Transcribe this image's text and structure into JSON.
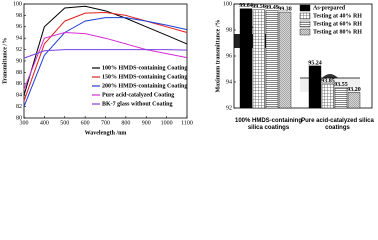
{
  "chart_data": [
    {
      "type": "line",
      "y_label": "Transmittance /%",
      "x_label": "Wavelength /nm",
      "x": [
        300,
        400,
        500,
        600,
        700,
        800,
        900,
        1000,
        1100
      ],
      "series": [
        {
          "name": "100% HMDS-containing Coating",
          "color": "#000000",
          "values": [
            84,
            96,
            99.3,
            99.6,
            98.8,
            97.5,
            96,
            94.5,
            93
          ]
        },
        {
          "name": "150% HMDS-containing Coating",
          "color": "#e0201b",
          "values": [
            83,
            93,
            97,
            98.4,
            98.5,
            98,
            97,
            96,
            95
          ]
        },
        {
          "name": "200% HMDS-containing Coating",
          "color": "#1f3fd8",
          "values": [
            82,
            91,
            95,
            97,
            97.6,
            97.6,
            97,
            96.3,
            95.5
          ]
        },
        {
          "name": "Pure acid-catalyzed Coating",
          "color": "#d62bd6",
          "values": [
            85,
            94,
            95,
            94.8,
            94,
            93,
            92,
            91.3,
            90.6
          ]
        },
        {
          "name": "BK-7 glass without Coating",
          "color": "#7a3fe0",
          "values": [
            90.5,
            91.8,
            92,
            92,
            92,
            92,
            92,
            92,
            91.9
          ]
        }
      ],
      "xlim": [
        300,
        1100
      ],
      "xticks": [
        300,
        400,
        500,
        600,
        700,
        800,
        900,
        1000,
        1100
      ],
      "ylim": [
        80,
        100
      ],
      "yticks": [
        80,
        82,
        84,
        86,
        88,
        90,
        92,
        94,
        96,
        98,
        100
      ]
    },
    {
      "type": "bar",
      "y_label": "Maximum transmittance /%",
      "categories": [
        "100% HMDS-containing silica coatings",
        "Pure acid-catalyzed silica coatings"
      ],
      "series": [
        {
          "name": "As-prepared",
          "color": "#000000",
          "pattern": "solid",
          "values": [
            99.64,
            95.24
          ],
          "value_labels": [
            "99.64",
            "95.24"
          ]
        },
        {
          "name": "Testing at 40% RH",
          "color": "#555555",
          "pattern": "grid",
          "values": [
            99.56,
            93.85
          ],
          "value_labels": [
            "99.56",
            "93.85"
          ]
        },
        {
          "name": "Testing at 60% RH",
          "color": "#777777",
          "pattern": "horizontal",
          "values": [
            99.49,
            93.55
          ],
          "value_labels": [
            "99.49",
            "93.55"
          ]
        },
        {
          "name": "Testing at 80% RH",
          "color": "#999999",
          "pattern": "dense",
          "values": [
            99.38,
            93.2
          ],
          "value_labels": [
            "99.38",
            "93.20"
          ]
        }
      ],
      "ylim": [
        92,
        100
      ],
      "yticks": [
        92,
        94,
        96,
        98,
        100
      ]
    }
  ]
}
